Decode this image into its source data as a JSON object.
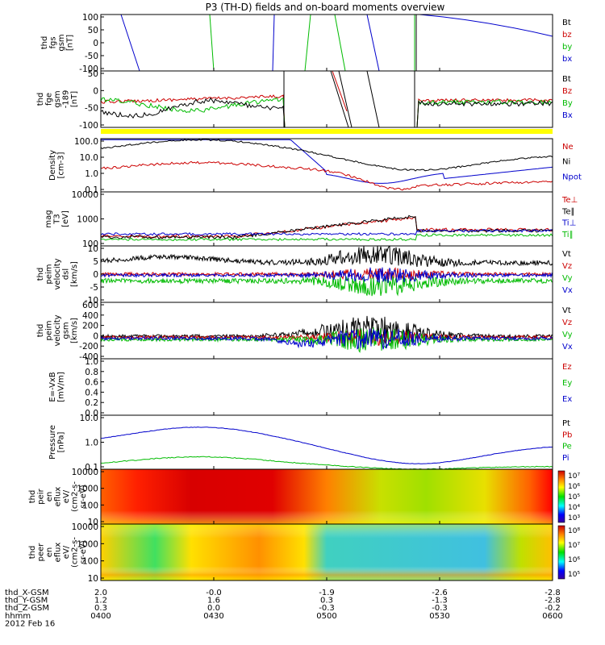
{
  "chart_data": {
    "type": "line",
    "title": "P3 (TH-D) fields and on-board moments overview",
    "date_label": "2012 Feb 16",
    "time_ticks": [
      "0400",
      "0430",
      "0500",
      "0530",
      "0600"
    ],
    "ephemeris": {
      "rows": [
        {
          "name": "thd_X-GSM",
          "values": [
            "2.0",
            "-0.0",
            "-1.9",
            "-2.6",
            "-2.8"
          ]
        },
        {
          "name": "thd_Y-GSM",
          "values": [
            "1.2",
            "1.6",
            "0.3",
            "-1.3",
            "-2.8"
          ]
        },
        {
          "name": "thd_Z-GSM",
          "values": [
            "0.3",
            "0.0",
            "-0.3",
            "-0.3",
            "-0.2"
          ]
        },
        {
          "name": "hhmm",
          "values": [
            "0400",
            "0430",
            "0500",
            "0530",
            "0600"
          ]
        }
      ]
    },
    "panels": [
      {
        "ylabel": [
          "thd",
          "fgs",
          "gsm",
          "[nT]"
        ],
        "ylim": [
          -100,
          100
        ],
        "yticks": [
          "100",
          "50",
          "0",
          "-50",
          "-100"
        ],
        "legend": [
          {
            "name": "Bt",
            "color": "#000000"
          },
          {
            "name": "bz",
            "color": "#cc0000"
          },
          {
            "name": "by",
            "color": "#00bb00"
          },
          {
            "name": "bx",
            "color": "#0000cc"
          }
        ]
      },
      {
        "ylabel": [
          "thd",
          "fge",
          "gsm",
          "-189",
          "[nT]"
        ],
        "ylim": [
          -120,
          50
        ],
        "yticks": [
          "50",
          "0",
          "-50",
          "-100"
        ],
        "legend": [
          {
            "name": "Bt",
            "color": "#000000"
          },
          {
            "name": "Bz",
            "color": "#cc0000"
          },
          {
            "name": "By",
            "color": "#00bb00"
          },
          {
            "name": "Bx",
            "color": "#0000cc"
          }
        ]
      },
      {
        "ylabel": [
          "Density",
          "[cm-3]"
        ],
        "scale": "log",
        "yticks": [
          "100.0",
          "10.0",
          "1.0",
          "0.1"
        ],
        "legend": [
          {
            "name": "Ne",
            "color": "#cc0000"
          },
          {
            "name": "Ni",
            "color": "#000000"
          },
          {
            "name": "Npot",
            "color": "#0000cc"
          }
        ]
      },
      {
        "ylabel": [
          "mag",
          "T3",
          "[eV]"
        ],
        "scale": "log",
        "yticks": [
          "10000",
          "1000",
          "100"
        ],
        "legend": [
          {
            "name": "Te⊥",
            "color": "#cc0000"
          },
          {
            "name": "Te∥",
            "color": "#000000"
          },
          {
            "name": "Ti⊥",
            "color": "#0000cc"
          },
          {
            "name": "Ti∥",
            "color": "#00bb00"
          }
        ]
      },
      {
        "ylabel": [
          "thd",
          "peim",
          "velocity",
          "dsl",
          "[km/s]"
        ],
        "ylim": [
          -10,
          10
        ],
        "yticks": [
          "10",
          "5",
          "0",
          "-5",
          "-10"
        ],
        "legend": [
          {
            "name": "Vt",
            "color": "#000000"
          },
          {
            "name": "Vz",
            "color": "#cc0000"
          },
          {
            "name": "Vy",
            "color": "#00bb00"
          },
          {
            "name": "Vx",
            "color": "#0000cc"
          }
        ]
      },
      {
        "ylabel": [
          "thd",
          "peim",
          "velocity",
          "gsm",
          "[km/s]"
        ],
        "ylim": [
          -400,
          600
        ],
        "yticks": [
          "600",
          "400",
          "200",
          "0",
          "-200",
          "-400"
        ],
        "legend": [
          {
            "name": "Vt",
            "color": "#000000"
          },
          {
            "name": "Vz",
            "color": "#cc0000"
          },
          {
            "name": "Vy",
            "color": "#00bb00"
          },
          {
            "name": "Vx",
            "color": "#0000cc"
          }
        ]
      },
      {
        "ylabel": [
          "E=-VxB",
          "[mV/m]"
        ],
        "ylim": [
          0,
          1
        ],
        "yticks": [
          "1.0",
          "0.8",
          "0.6",
          "0.4",
          "0.2",
          "0.0"
        ],
        "legend": [
          {
            "name": "Ez",
            "color": "#cc0000"
          },
          {
            "name": "Ey",
            "color": "#00bb00"
          },
          {
            "name": "Ex",
            "color": "#0000cc"
          }
        ]
      },
      {
        "ylabel": [
          "Pressure",
          "[nPa]"
        ],
        "scale": "log",
        "yticks": [
          "10.0",
          "1.0",
          "0.1"
        ],
        "legend": [
          {
            "name": "Pt",
            "color": "#000000"
          },
          {
            "name": "Pb",
            "color": "#cc0000"
          },
          {
            "name": "Pe",
            "color": "#00bb00"
          },
          {
            "name": "Pi",
            "color": "#0000cc"
          }
        ]
      },
      {
        "type": "heatmap",
        "ylabel": [
          "thd",
          "peir",
          "en",
          "eflux",
          "eV/",
          "(cm2-s-",
          "sr-eV)"
        ],
        "yticks": [
          "10000",
          "1000",
          "100",
          "10"
        ],
        "colorbar": [
          "10⁷",
          "10⁶",
          "10⁵",
          "10⁴",
          "10³"
        ]
      },
      {
        "type": "heatmap",
        "ylabel": [
          "thd",
          "peer",
          "en",
          "eflux",
          "eV/",
          "(cm2-s-",
          "sr-eV)"
        ],
        "yticks": [
          "10000",
          "1000",
          "100",
          "10"
        ],
        "colorbar": [
          "10⁸",
          "10⁷",
          "10⁶",
          "10⁵"
        ]
      }
    ]
  }
}
